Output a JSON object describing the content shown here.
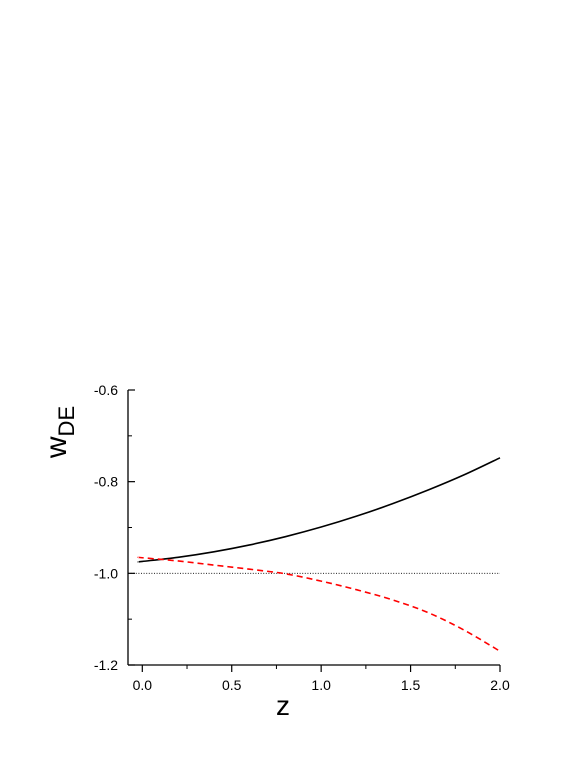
{
  "chart_data": {
    "type": "line",
    "title": "",
    "xlabel": "z",
    "ylabel": "w",
    "ylabel_subscript": "DE",
    "xlim": [
      -0.08,
      2.0
    ],
    "ylim": [
      -1.2,
      -0.6
    ],
    "x_ticks": [
      0.0,
      0.5,
      1.0,
      1.5,
      2.0
    ],
    "x_tick_labels": [
      "0.0",
      "0.5",
      "1.0",
      "1.5",
      "2.0"
    ],
    "y_ticks": [
      -1.2,
      -1.0,
      -0.8,
      -0.6
    ],
    "y_tick_labels": [
      "-1.2",
      "-1.0",
      "-0.8",
      "-0.6"
    ],
    "reference_line": {
      "y": -1.0,
      "style": "dotted",
      "color": "#000000"
    },
    "grid": false,
    "legend": "none",
    "series": [
      {
        "color": "#000000",
        "style": "solid",
        "x": [
          -0.02,
          0.0,
          0.2,
          0.4,
          0.6,
          0.8,
          1.0,
          1.2,
          1.4,
          1.6,
          1.8,
          2.0
        ],
        "y": [
          -0.975,
          -0.974,
          -0.965,
          -0.953,
          -0.938,
          -0.92,
          -0.899,
          -0.875,
          -0.848,
          -0.818,
          -0.785,
          -0.748
        ]
      },
      {
        "color": "#ff0000",
        "style": "dashed",
        "x": [
          -0.02,
          0.0,
          0.2,
          0.4,
          0.6,
          0.8,
          1.0,
          1.2,
          1.4,
          1.6,
          1.8,
          2.0
        ],
        "y": [
          -0.965,
          -0.966,
          -0.973,
          -0.982,
          -0.991,
          -1.001,
          -1.017,
          -1.036,
          -1.058,
          -1.086,
          -1.124,
          -1.17
        ]
      }
    ]
  }
}
